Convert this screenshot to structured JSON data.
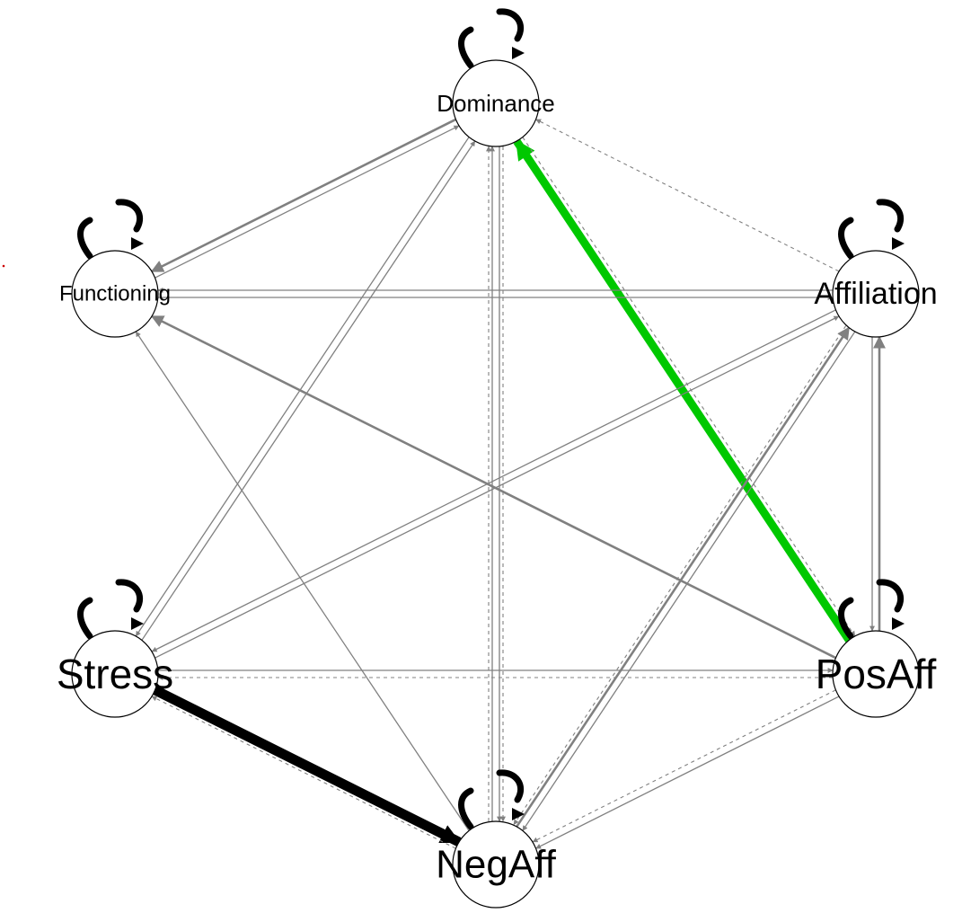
{
  "graph": {
    "type": "network",
    "colors": {
      "edge": "#808080",
      "positive": "#00c800",
      "negative": "#000000",
      "self_loop": "#000000",
      "node_fill": "#ffffff",
      "node_stroke": "#000000",
      "marker": "#cc0000"
    },
    "nodes": [
      {
        "id": "Dominance",
        "label": "Dominance"
      },
      {
        "id": "Functioning",
        "label": "Functioning"
      },
      {
        "id": "Affiliation",
        "label": "Affiliation"
      },
      {
        "id": "Stress",
        "label": "Stress"
      },
      {
        "id": "PosAff",
        "label": "PosAff"
      },
      {
        "id": "NegAff",
        "label": "NegAff"
      }
    ],
    "edges": [
      {
        "from": "Dominance",
        "to": "Dominance",
        "style": "self"
      },
      {
        "from": "Functioning",
        "to": "Functioning",
        "style": "self"
      },
      {
        "from": "Affiliation",
        "to": "Affiliation",
        "style": "self"
      },
      {
        "from": "Stress",
        "to": "Stress",
        "style": "self"
      },
      {
        "from": "PosAff",
        "to": "PosAff",
        "style": "self"
      },
      {
        "from": "NegAff",
        "to": "NegAff",
        "style": "self"
      },
      {
        "from": "PosAff",
        "to": "Dominance",
        "style": "positive-strong"
      },
      {
        "from": "Stress",
        "to": "NegAff",
        "style": "negative-strong"
      },
      {
        "from": "Dominance",
        "to": "Functioning",
        "style": "solid-medium"
      },
      {
        "from": "Functioning",
        "to": "Dominance",
        "style": "solid"
      },
      {
        "from": "Affiliation",
        "to": "Functioning",
        "style": "solid"
      },
      {
        "from": "Functioning",
        "to": "Affiliation",
        "style": "solid"
      },
      {
        "from": "PosAff",
        "to": "Functioning",
        "style": "solid-medium"
      },
      {
        "from": "NegAff",
        "to": "Functioning",
        "style": "solid"
      },
      {
        "from": "Dominance",
        "to": "Stress",
        "style": "solid"
      },
      {
        "from": "Stress",
        "to": "Dominance",
        "style": "solid"
      },
      {
        "from": "NegAff",
        "to": "Dominance",
        "style": "solid"
      },
      {
        "from": "Dominance",
        "to": "NegAff",
        "style": "solid"
      },
      {
        "from": "NegAff",
        "to": "Dominance",
        "style": "dashed"
      },
      {
        "from": "Dominance",
        "to": "NegAff",
        "style": "dashed"
      },
      {
        "from": "Affiliation",
        "to": "Dominance",
        "style": "dashed"
      },
      {
        "from": "Dominance",
        "to": "PosAff",
        "style": "dashed"
      },
      {
        "from": "Affiliation",
        "to": "Stress",
        "style": "solid"
      },
      {
        "from": "Stress",
        "to": "Affiliation",
        "style": "solid"
      },
      {
        "from": "NegAff",
        "to": "Affiliation",
        "style": "solid-medium"
      },
      {
        "from": "Affiliation",
        "to": "NegAff",
        "style": "solid"
      },
      {
        "from": "Affiliation",
        "to": "NegAff",
        "style": "dashed"
      },
      {
        "from": "Affiliation",
        "to": "PosAff",
        "style": "solid"
      },
      {
        "from": "PosAff",
        "to": "Affiliation",
        "style": "solid-medium"
      },
      {
        "from": "Stress",
        "to": "PosAff",
        "style": "solid"
      },
      {
        "from": "PosAff",
        "to": "Stress",
        "style": "dashed"
      },
      {
        "from": "NegAff",
        "to": "Stress",
        "style": "dashed"
      },
      {
        "from": "PosAff",
        "to": "NegAff",
        "style": "solid"
      },
      {
        "from": "PosAff",
        "to": "NegAff",
        "style": "dashed"
      }
    ]
  }
}
